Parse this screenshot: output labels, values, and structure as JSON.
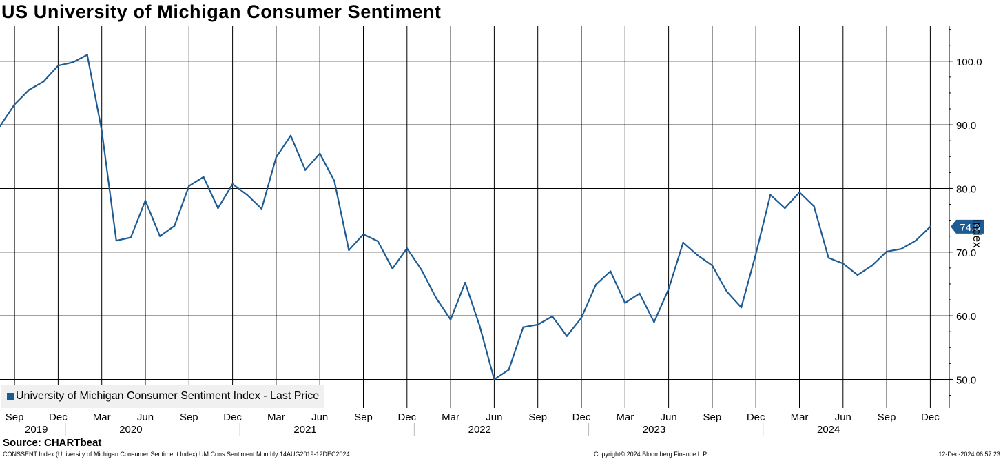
{
  "chart_data": {
    "type": "line",
    "title": "US University of Michigan Consumer Sentiment",
    "ylabel": "Index",
    "ylim": [
      45.5,
      105.5
    ],
    "yticks": [
      50.0,
      60.0,
      70.0,
      80.0,
      90.0,
      100.0
    ],
    "ytick_labels": [
      "50.0",
      "60.0",
      "70.0",
      "80.0",
      "90.0",
      "100.0"
    ],
    "xtick_labels": [
      "Sep",
      "Dec",
      "Mar",
      "Jun",
      "Sep",
      "Dec",
      "Mar",
      "Jun",
      "Sep",
      "Dec",
      "Mar",
      "Jun",
      "Sep",
      "Dec",
      "Mar",
      "Jun",
      "Sep",
      "Dec",
      "Mar",
      "Jun",
      "Sep",
      "Dec"
    ],
    "xtick_month_index": [
      1,
      4,
      7,
      10,
      13,
      16,
      19,
      22,
      25,
      28,
      31,
      34,
      37,
      40,
      43,
      46,
      49,
      52,
      55,
      58,
      61,
      64
    ],
    "year_labels": [
      {
        "label": "2019",
        "month_index": 2.5
      },
      {
        "label": "2020",
        "month_index": 9
      },
      {
        "label": "2021",
        "month_index": 21
      },
      {
        "label": "2022",
        "month_index": 33
      },
      {
        "label": "2023",
        "month_index": 45
      },
      {
        "label": "2024",
        "month_index": 57
      }
    ],
    "year_boundaries": [
      4.5,
      16.5,
      28.5,
      40.5,
      52.5
    ],
    "grid": true,
    "legend_position": "bottom-left",
    "series": [
      {
        "name": "University of Michigan Consumer Sentiment Index - Last Price",
        "color": "#1d5b93",
        "x": [
          "2019-08",
          "2019-09",
          "2019-10",
          "2019-11",
          "2019-12",
          "2020-01",
          "2020-02",
          "2020-03",
          "2020-04",
          "2020-05",
          "2020-06",
          "2020-07",
          "2020-08",
          "2020-09",
          "2020-10",
          "2020-11",
          "2020-12",
          "2021-01",
          "2021-02",
          "2021-03",
          "2021-04",
          "2021-05",
          "2021-06",
          "2021-07",
          "2021-08",
          "2021-09",
          "2021-10",
          "2021-11",
          "2021-12",
          "2022-01",
          "2022-02",
          "2022-03",
          "2022-04",
          "2022-05",
          "2022-06",
          "2022-07",
          "2022-08",
          "2022-09",
          "2022-10",
          "2022-11",
          "2022-12",
          "2023-01",
          "2023-02",
          "2023-03",
          "2023-04",
          "2023-05",
          "2023-06",
          "2023-07",
          "2023-08",
          "2023-09",
          "2023-10",
          "2023-11",
          "2023-12",
          "2024-01",
          "2024-02",
          "2024-03",
          "2024-04",
          "2024-05",
          "2024-06",
          "2024-07",
          "2024-08",
          "2024-09",
          "2024-10",
          "2024-11",
          "2024-12"
        ],
        "values": [
          89.8,
          93.2,
          95.5,
          96.8,
          99.3,
          99.8,
          101.0,
          89.1,
          71.8,
          72.3,
          78.1,
          72.5,
          74.1,
          80.4,
          81.8,
          76.9,
          80.7,
          79.0,
          76.8,
          84.9,
          88.3,
          82.9,
          85.5,
          81.2,
          70.3,
          72.8,
          71.7,
          67.4,
          70.6,
          67.2,
          62.8,
          59.4,
          65.2,
          58.4,
          50.0,
          51.5,
          58.2,
          58.6,
          59.9,
          56.8,
          59.7,
          64.9,
          67.0,
          62.0,
          63.5,
          59.0,
          64.2,
          71.5,
          69.5,
          67.9,
          63.8,
          61.3,
          69.7,
          79.0,
          76.9,
          79.4,
          77.2,
          69.1,
          68.2,
          66.4,
          67.9,
          70.1,
          70.5,
          71.8,
          74.0
        ]
      }
    ],
    "last_value_label": "74.0"
  },
  "legend": {
    "label": "University of Michigan Consumer Sentiment Index - Last Price"
  },
  "source": "Source: CHARTbeat",
  "footer": {
    "left": "CONSSENT Index (University of Michigan Consumer Sentiment Index) UM Cons Sentiment  Monthly 14AUG2019-12DEC2024",
    "middle": "Copyright© 2024 Bloomberg Finance L.P.",
    "right": "12-Dec-2024 06:57:23"
  },
  "colors": {
    "line": "#1d5b93",
    "grid": "#000000",
    "label_bg": "#1d5b93"
  }
}
